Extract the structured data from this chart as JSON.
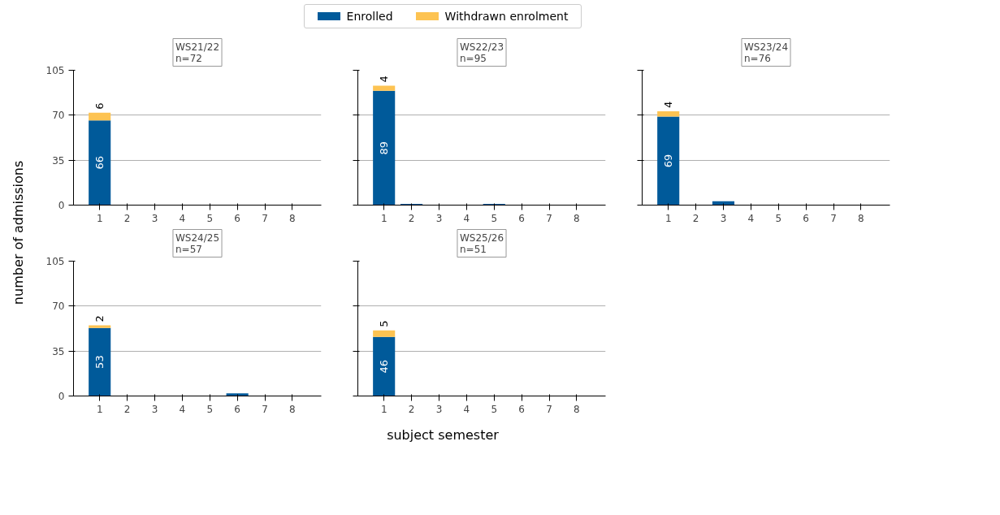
{
  "chart_data": [
    {
      "type": "bar",
      "title": "WS21/22\nn=72",
      "stacked": true,
      "categories": [
        "1",
        "2",
        "3",
        "4",
        "5",
        "6",
        "7",
        "8"
      ],
      "ylim": [
        0,
        105
      ],
      "yticks": [
        0,
        35,
        70,
        105
      ],
      "grid": "y",
      "legend": "top",
      "xlabel": "subject semester",
      "ylabel": "number of admissions",
      "series": [
        {
          "name": "Enrolled",
          "color": "#005a9a",
          "values": [
            66,
            0,
            0,
            0,
            0,
            0,
            0,
            0
          ],
          "value_labels": [
            "66",
            null,
            null,
            null,
            null,
            null,
            null,
            null
          ]
        },
        {
          "name": "Withdrawn enrolment",
          "color": "#fdc352",
          "values": [
            6,
            0,
            0,
            0,
            0,
            0,
            0,
            0
          ],
          "value_labels": [
            "6",
            null,
            null,
            null,
            null,
            null,
            null,
            null
          ]
        }
      ]
    },
    {
      "type": "bar",
      "title": "WS22/23\nn=95",
      "stacked": true,
      "categories": [
        "1",
        "2",
        "3",
        "4",
        "5",
        "6",
        "7",
        "8"
      ],
      "ylim": [
        0,
        105
      ],
      "yticks": [
        0,
        35,
        70,
        105
      ],
      "grid": "y",
      "tick_labels": "x",
      "series": [
        {
          "color": "#005a9a",
          "values": [
            89,
            1,
            0,
            0,
            1,
            0,
            0,
            0
          ],
          "value_labels": [
            "89",
            null,
            null,
            null,
            null,
            null,
            null,
            null
          ]
        },
        {
          "color": "#fdc352",
          "values": [
            4,
            0,
            0,
            0,
            0,
            0,
            0,
            0
          ],
          "value_labels": [
            "4",
            null,
            null,
            null,
            null,
            null,
            null,
            null
          ]
        }
      ]
    },
    {
      "type": "bar",
      "title": "WS23/24\nn=76",
      "stacked": true,
      "categories": [
        "1",
        "2",
        "3",
        "4",
        "5",
        "6",
        "7",
        "8"
      ],
      "ylim": [
        0,
        105
      ],
      "yticks": [
        0,
        35,
        70,
        105
      ],
      "grid": "y",
      "tick_labels": "x",
      "series": [
        {
          "color": "#005a9a",
          "values": [
            69,
            0,
            3,
            0,
            0,
            0,
            0,
            0
          ],
          "value_labels": [
            "69",
            null,
            null,
            null,
            null,
            null,
            null,
            null
          ]
        },
        {
          "color": "#fdc352",
          "values": [
            4,
            0,
            0,
            0,
            0,
            0,
            0,
            0
          ],
          "value_labels": [
            "4",
            null,
            null,
            null,
            null,
            null,
            null,
            null
          ]
        }
      ]
    },
    {
      "type": "bar",
      "title": "WS24/25\nn=57",
      "stacked": true,
      "categories": [
        "1",
        "2",
        "3",
        "4",
        "5",
        "6",
        "7",
        "8"
      ],
      "ylim": [
        0,
        105
      ],
      "yticks": [
        0,
        35,
        70,
        105
      ],
      "grid": "y",
      "series": [
        {
          "color": "#005a9a",
          "values": [
            53,
            0,
            0,
            0,
            0,
            2,
            0,
            0
          ],
          "value_labels": [
            "53",
            null,
            null,
            null,
            null,
            null,
            null,
            null
          ]
        },
        {
          "color": "#fdc352",
          "values": [
            2,
            0,
            0,
            0,
            0,
            0,
            0,
            0
          ],
          "value_labels": [
            "2",
            null,
            null,
            null,
            null,
            null,
            null,
            null
          ]
        }
      ]
    },
    {
      "type": "bar",
      "title": "WS25/26\nn=51",
      "stacked": true,
      "categories": [
        "1",
        "2",
        "3",
        "4",
        "5",
        "6",
        "7",
        "8"
      ],
      "ylim": [
        0,
        105
      ],
      "yticks": [
        0,
        35,
        70,
        105
      ],
      "grid": "y",
      "tick_labels": "x",
      "series": [
        {
          "color": "#005a9a",
          "values": [
            46,
            0,
            0,
            0,
            0,
            0,
            0,
            0
          ],
          "value_labels": [
            "46",
            null,
            null,
            null,
            null,
            null,
            null,
            null
          ]
        },
        {
          "color": "#fdc352",
          "values": [
            5,
            0,
            0,
            0,
            0,
            0,
            0,
            0
          ],
          "value_labels": [
            "5",
            null,
            null,
            null,
            null,
            null,
            null,
            null
          ]
        }
      ]
    }
  ]
}
